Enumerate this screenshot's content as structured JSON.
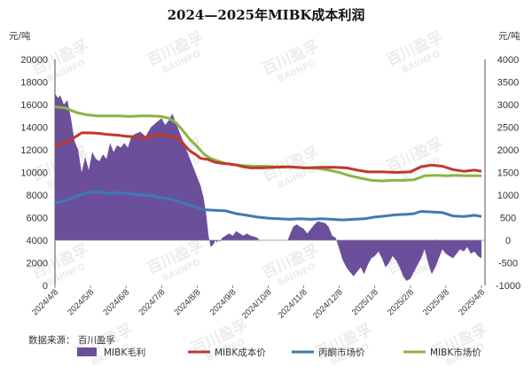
{
  "title": "2024—2025年MIBK成本利润",
  "source": "数据来源： 百川盈孚",
  "watermark": {
    "cn": "百川盈孚",
    "en": "BAIINFO"
  },
  "colors": {
    "profit": "#6b4f9b",
    "cost": "#c0392b",
    "acetone": "#3d7ab5",
    "mibk_price": "#8ab542"
  },
  "chart_data": {
    "type": "line+area",
    "title": "2024—2025年MIBK成本利润",
    "left_axis": {
      "unit": "元/吨",
      "min": 0,
      "max": 20000,
      "step": 2000,
      "ticks": [
        "0",
        "2000",
        "4000",
        "6000",
        "8000",
        "10000",
        "12000",
        "14000",
        "16000",
        "18000",
        "20000"
      ]
    },
    "right_axis": {
      "unit": "元/吨",
      "min": -1000,
      "max": 4000,
      "step": 500,
      "ticks": [
        "-1000",
        "-500",
        "0",
        "500",
        "1000",
        "1500",
        "2000",
        "2500",
        "3000",
        "3500",
        "4000"
      ]
    },
    "x_ticks": [
      "2024/4/8",
      "2024/5/8",
      "2024/6/8",
      "2024/7/8",
      "2024/8/8",
      "2024/9/8",
      "2024/10/8",
      "2024/11/8",
      "2024/12/8",
      "2025/1/8",
      "2025/2/8",
      "2025/3/8",
      "2025/4/8"
    ],
    "x_range_months": [
      0,
      12.1
    ],
    "series": [
      {
        "key": "profit",
        "name": "MIBK毛利",
        "axis": "right",
        "kind": "area",
        "points": [
          [
            0,
            3250
          ],
          [
            0.08,
            3150
          ],
          [
            0.15,
            3200
          ],
          [
            0.25,
            3000
          ],
          [
            0.35,
            3100
          ],
          [
            0.45,
            2700
          ],
          [
            0.55,
            2200
          ],
          [
            0.65,
            2000
          ],
          [
            0.75,
            1500
          ],
          [
            0.85,
            1850
          ],
          [
            0.95,
            1550
          ],
          [
            1.05,
            1950
          ],
          [
            1.15,
            1800
          ],
          [
            1.25,
            1750
          ],
          [
            1.35,
            1900
          ],
          [
            1.45,
            1800
          ],
          [
            1.55,
            2150
          ],
          [
            1.65,
            1950
          ],
          [
            1.75,
            2100
          ],
          [
            1.85,
            2050
          ],
          [
            1.95,
            2150
          ],
          [
            2.05,
            2050
          ],
          [
            2.15,
            2300
          ],
          [
            2.25,
            2350
          ],
          [
            2.4,
            2400
          ],
          [
            2.55,
            2300
          ],
          [
            2.7,
            2500
          ],
          [
            2.85,
            2600
          ],
          [
            3.0,
            2700
          ],
          [
            3.1,
            2550
          ],
          [
            3.2,
            2650
          ],
          [
            3.3,
            2800
          ],
          [
            3.4,
            2600
          ],
          [
            3.5,
            2400
          ],
          [
            3.6,
            2200
          ],
          [
            3.7,
            2000
          ],
          [
            3.8,
            1800
          ],
          [
            3.9,
            1600
          ],
          [
            4.0,
            1400
          ],
          [
            4.1,
            1200
          ],
          [
            4.18,
            950
          ],
          [
            4.25,
            600
          ],
          [
            4.32,
            100
          ],
          [
            4.38,
            -150
          ],
          [
            4.45,
            -100
          ],
          [
            4.52,
            0
          ],
          [
            4.55,
            -50
          ],
          [
            4.6,
            0
          ],
          [
            4.65,
            -30
          ],
          [
            4.7,
            50
          ],
          [
            4.8,
            100
          ],
          [
            4.9,
            150
          ],
          [
            5.0,
            100
          ],
          [
            5.1,
            200
          ],
          [
            5.2,
            150
          ],
          [
            5.3,
            100
          ],
          [
            5.4,
            150
          ],
          [
            5.5,
            100
          ],
          [
            5.6,
            80
          ],
          [
            5.7,
            50
          ],
          [
            5.75,
            0
          ],
          [
            5.85,
            0
          ],
          [
            5.95,
            0
          ],
          [
            6.05,
            0
          ],
          [
            6.15,
            0
          ],
          [
            6.25,
            0
          ],
          [
            6.35,
            0
          ],
          [
            6.45,
            0
          ],
          [
            6.55,
            0
          ],
          [
            6.6,
            100
          ],
          [
            6.7,
            300
          ],
          [
            6.8,
            350
          ],
          [
            6.9,
            300
          ],
          [
            7.0,
            250
          ],
          [
            7.1,
            150
          ],
          [
            7.2,
            250
          ],
          [
            7.3,
            350
          ],
          [
            7.4,
            420
          ],
          [
            7.5,
            400
          ],
          [
            7.6,
            380
          ],
          [
            7.7,
            300
          ],
          [
            7.8,
            100
          ],
          [
            7.9,
            50
          ],
          [
            8.0,
            -200
          ],
          [
            8.1,
            -450
          ],
          [
            8.2,
            -600
          ],
          [
            8.3,
            -700
          ],
          [
            8.4,
            -800
          ],
          [
            8.5,
            -700
          ],
          [
            8.6,
            -600
          ],
          [
            8.7,
            -750
          ],
          [
            8.8,
            -550
          ],
          [
            8.9,
            -400
          ],
          [
            9.0,
            -350
          ],
          [
            9.1,
            -250
          ],
          [
            9.2,
            -400
          ],
          [
            9.3,
            -600
          ],
          [
            9.4,
            -500
          ],
          [
            9.5,
            -350
          ],
          [
            9.6,
            -450
          ],
          [
            9.7,
            -600
          ],
          [
            9.8,
            -800
          ],
          [
            9.9,
            -900
          ],
          [
            10.0,
            -850
          ],
          [
            10.1,
            -700
          ],
          [
            10.2,
            -550
          ],
          [
            10.3,
            -400
          ],
          [
            10.4,
            -200
          ],
          [
            10.5,
            -500
          ],
          [
            10.6,
            -750
          ],
          [
            10.7,
            -600
          ],
          [
            10.8,
            -400
          ],
          [
            10.9,
            -200
          ],
          [
            11.0,
            -300
          ],
          [
            11.1,
            -350
          ],
          [
            11.2,
            -400
          ],
          [
            11.3,
            -300
          ],
          [
            11.4,
            -200
          ],
          [
            11.5,
            -250
          ],
          [
            11.6,
            -150
          ],
          [
            11.7,
            -300
          ],
          [
            11.8,
            -250
          ],
          [
            11.9,
            -350
          ],
          [
            12.0,
            -400
          ]
        ]
      },
      {
        "key": "cost",
        "name": "MIBK成本价",
        "axis": "left",
        "kind": "line",
        "points": [
          [
            0,
            12400
          ],
          [
            0.25,
            12600
          ],
          [
            0.5,
            13000
          ],
          [
            0.75,
            13500
          ],
          [
            1.0,
            13500
          ],
          [
            1.25,
            13450
          ],
          [
            1.5,
            13350
          ],
          [
            1.75,
            13300
          ],
          [
            2.0,
            13200
          ],
          [
            2.25,
            13150
          ],
          [
            2.5,
            13000
          ],
          [
            2.75,
            13250
          ],
          [
            3.0,
            13350
          ],
          [
            3.25,
            13200
          ],
          [
            3.5,
            13000
          ],
          [
            3.65,
            12400
          ],
          [
            3.8,
            11900
          ],
          [
            3.95,
            11600
          ],
          [
            4.1,
            11250
          ],
          [
            4.3,
            11150
          ],
          [
            4.5,
            10900
          ],
          [
            4.7,
            10800
          ],
          [
            4.9,
            10750
          ],
          [
            5.1,
            10650
          ],
          [
            5.3,
            10500
          ],
          [
            5.5,
            10400
          ],
          [
            5.8,
            10400
          ],
          [
            6.2,
            10450
          ],
          [
            6.6,
            10500
          ],
          [
            7.0,
            10400
          ],
          [
            7.5,
            10450
          ],
          [
            7.9,
            10450
          ],
          [
            8.2,
            10400
          ],
          [
            8.5,
            10200
          ],
          [
            8.8,
            10050
          ],
          [
            9.2,
            10050
          ],
          [
            9.6,
            10000
          ],
          [
            10.0,
            10050
          ],
          [
            10.3,
            10500
          ],
          [
            10.6,
            10650
          ],
          [
            10.9,
            10550
          ],
          [
            11.2,
            10250
          ],
          [
            11.5,
            10100
          ],
          [
            11.8,
            10200
          ],
          [
            12.0,
            10100
          ]
        ]
      },
      {
        "key": "acetone",
        "name": "丙酮市场价",
        "axis": "left",
        "kind": "line",
        "points": [
          [
            0,
            7300
          ],
          [
            0.3,
            7500
          ],
          [
            0.6,
            7900
          ],
          [
            0.9,
            8200
          ],
          [
            1.2,
            8300
          ],
          [
            1.5,
            8150
          ],
          [
            1.8,
            8200
          ],
          [
            2.1,
            8150
          ],
          [
            2.4,
            8000
          ],
          [
            2.7,
            7950
          ],
          [
            3.0,
            7750
          ],
          [
            3.3,
            7600
          ],
          [
            3.6,
            7300
          ],
          [
            3.9,
            7000
          ],
          [
            4.2,
            6700
          ],
          [
            4.5,
            6650
          ],
          [
            4.8,
            6600
          ],
          [
            5.1,
            6350
          ],
          [
            5.4,
            6200
          ],
          [
            5.7,
            6050
          ],
          [
            6.0,
            5950
          ],
          [
            6.3,
            5900
          ],
          [
            6.6,
            5850
          ],
          [
            6.9,
            5900
          ],
          [
            7.2,
            5850
          ],
          [
            7.5,
            5900
          ],
          [
            7.8,
            5850
          ],
          [
            8.1,
            5800
          ],
          [
            8.4,
            5850
          ],
          [
            8.7,
            5900
          ],
          [
            9.0,
            6050
          ],
          [
            9.3,
            6150
          ],
          [
            9.6,
            6250
          ],
          [
            9.9,
            6300
          ],
          [
            10.1,
            6350
          ],
          [
            10.3,
            6550
          ],
          [
            10.6,
            6500
          ],
          [
            10.9,
            6450
          ],
          [
            11.2,
            6150
          ],
          [
            11.5,
            6100
          ],
          [
            11.8,
            6200
          ],
          [
            12.0,
            6100
          ]
        ]
      },
      {
        "key": "mibk_price",
        "name": "MIBK市场价",
        "axis": "left",
        "kind": "line",
        "points": [
          [
            0,
            15800
          ],
          [
            0.3,
            15700
          ],
          [
            0.6,
            15300
          ],
          [
            0.9,
            15100
          ],
          [
            1.2,
            15000
          ],
          [
            1.5,
            15000
          ],
          [
            1.8,
            15000
          ],
          [
            2.1,
            14950
          ],
          [
            2.4,
            15000
          ],
          [
            2.7,
            15000
          ],
          [
            3.0,
            14950
          ],
          [
            3.2,
            14800
          ],
          [
            3.4,
            14400
          ],
          [
            3.6,
            13700
          ],
          [
            3.8,
            12900
          ],
          [
            4.0,
            12300
          ],
          [
            4.2,
            11600
          ],
          [
            4.4,
            11200
          ],
          [
            4.6,
            11000
          ],
          [
            4.8,
            10800
          ],
          [
            5.0,
            10700
          ],
          [
            5.3,
            10600
          ],
          [
            5.6,
            10550
          ],
          [
            5.9,
            10550
          ],
          [
            6.2,
            10500
          ],
          [
            6.5,
            10500
          ],
          [
            6.8,
            10450
          ],
          [
            7.1,
            10400
          ],
          [
            7.4,
            10350
          ],
          [
            7.7,
            10200
          ],
          [
            8.0,
            10000
          ],
          [
            8.3,
            9700
          ],
          [
            8.6,
            9500
          ],
          [
            8.9,
            9300
          ],
          [
            9.2,
            9250
          ],
          [
            9.5,
            9300
          ],
          [
            9.8,
            9300
          ],
          [
            10.1,
            9350
          ],
          [
            10.4,
            9700
          ],
          [
            10.7,
            9750
          ],
          [
            11.0,
            9700
          ],
          [
            11.3,
            9750
          ],
          [
            11.6,
            9700
          ],
          [
            11.9,
            9700
          ],
          [
            12.0,
            9700
          ]
        ]
      }
    ],
    "legend": [
      {
        "key": "profit",
        "name": "MIBK毛利"
      },
      {
        "key": "cost",
        "name": "MIBK成本价"
      },
      {
        "key": "acetone",
        "name": "丙酮市场价"
      },
      {
        "key": "mibk_price",
        "name": "MIBK市场价"
      }
    ]
  }
}
